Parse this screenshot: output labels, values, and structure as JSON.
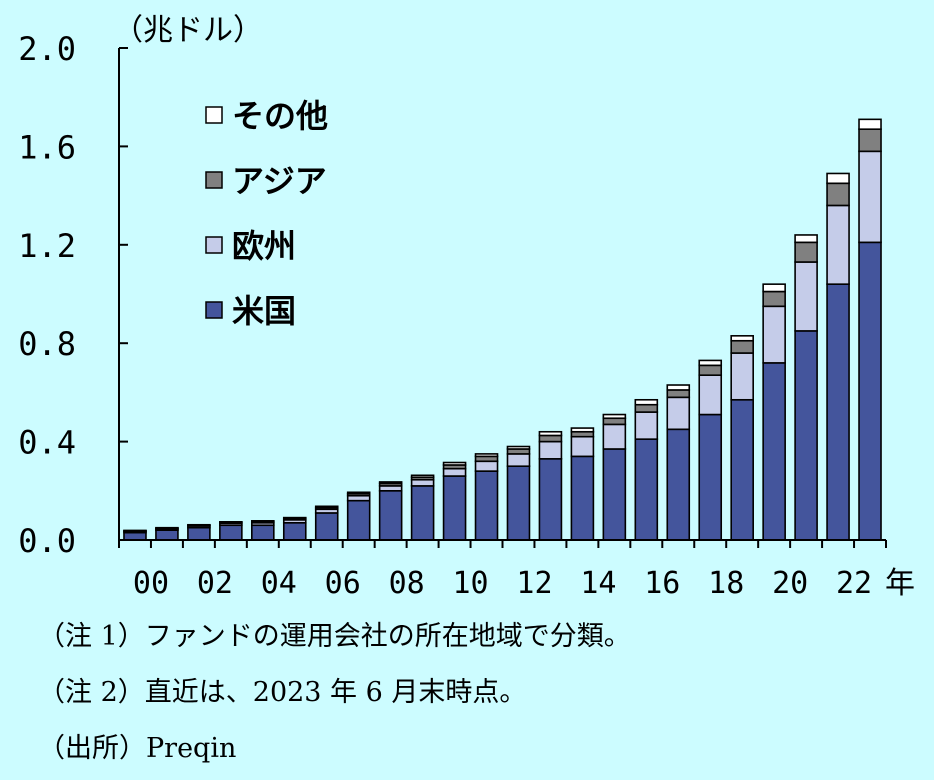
{
  "chart_data": {
    "type": "bar",
    "stacked": true,
    "unit_label": "（兆ドル）",
    "x_unit": "年",
    "categories": [
      "00",
      "01",
      "02",
      "03",
      "04",
      "05",
      "06",
      "07",
      "08",
      "09",
      "10",
      "11",
      "12",
      "13",
      "14",
      "15",
      "16",
      "17",
      "18",
      "19",
      "20",
      "21",
      "22",
      "23"
    ],
    "xtick_labels": [
      "00",
      "02",
      "04",
      "06",
      "08",
      "10",
      "12",
      "14",
      "16",
      "18",
      "20",
      "22"
    ],
    "ylim": [
      0,
      2.0
    ],
    "yticks": [
      "0.0",
      "0.4",
      "0.8",
      "1.2",
      "1.6",
      "2.0"
    ],
    "grid": false,
    "legend_position": "top-left",
    "series": [
      {
        "name": "米国",
        "color": "#44559c",
        "values": [
          0.03,
          0.04,
          0.05,
          0.06,
          0.06,
          0.07,
          0.11,
          0.16,
          0.2,
          0.22,
          0.26,
          0.28,
          0.3,
          0.33,
          0.34,
          0.37,
          0.41,
          0.45,
          0.51,
          0.57,
          0.72,
          0.85,
          1.04,
          1.21
        ]
      },
      {
        "name": "欧州",
        "color": "#c5cce9",
        "values": [
          0.005,
          0.005,
          0.007,
          0.008,
          0.01,
          0.012,
          0.015,
          0.02,
          0.02,
          0.025,
          0.03,
          0.04,
          0.05,
          0.07,
          0.08,
          0.1,
          0.11,
          0.13,
          0.16,
          0.19,
          0.23,
          0.28,
          0.32,
          0.37
        ]
      },
      {
        "name": "アジア",
        "color": "#808080",
        "values": [
          0.002,
          0.003,
          0.003,
          0.004,
          0.005,
          0.006,
          0.007,
          0.008,
          0.01,
          0.01,
          0.015,
          0.02,
          0.02,
          0.025,
          0.02,
          0.025,
          0.03,
          0.03,
          0.04,
          0.05,
          0.06,
          0.08,
          0.09,
          0.09
        ]
      },
      {
        "name": "その他",
        "color": "#ffffff",
        "values": [
          0.002,
          0.002,
          0.002,
          0.002,
          0.003,
          0.003,
          0.005,
          0.006,
          0.006,
          0.008,
          0.01,
          0.01,
          0.01,
          0.015,
          0.015,
          0.015,
          0.02,
          0.02,
          0.02,
          0.02,
          0.03,
          0.03,
          0.04,
          0.04
        ]
      }
    ]
  },
  "notes": {
    "note1": "（注 1）ファンドの運用会社の所在地域で分類。",
    "note2": "（注 2）直近は、2023 年 6 月末時点。",
    "source": "（出所）Preqin"
  }
}
